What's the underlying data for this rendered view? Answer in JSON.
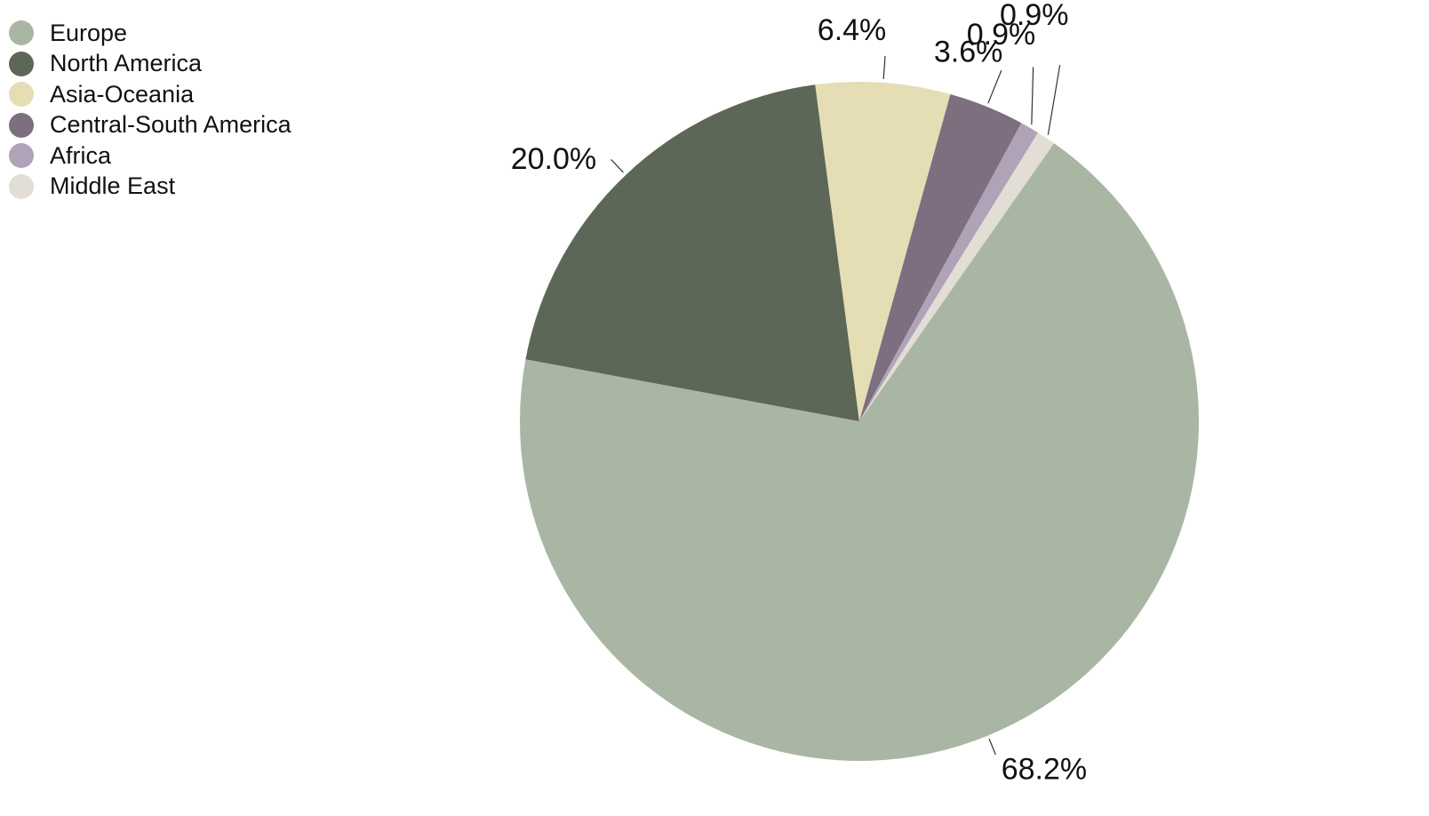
{
  "chart_data": {
    "type": "pie",
    "start_angle_deg": 55,
    "direction": "clockwise",
    "legend_position": "top-left",
    "slices": [
      {
        "name": "Europe",
        "value": 68.2,
        "label": "68.2%",
        "color": "#aab6a4"
      },
      {
        "name": "North America",
        "value": 20.0,
        "label": "20.0%",
        "color": "#5d6757"
      },
      {
        "name": "Asia-Oceania",
        "value": 6.4,
        "label": "6.4%",
        "color": "#e5ddb4"
      },
      {
        "name": "Central-South America",
        "value": 3.6,
        "label": "3.6%",
        "color": "#7d6e80"
      },
      {
        "name": "Africa",
        "value": 0.9,
        "label": "0.9%",
        "color": "#b0a2b7"
      },
      {
        "name": "Middle East",
        "value": 0.9,
        "label": "0.9%",
        "color": "#e2ddd5"
      }
    ]
  }
}
